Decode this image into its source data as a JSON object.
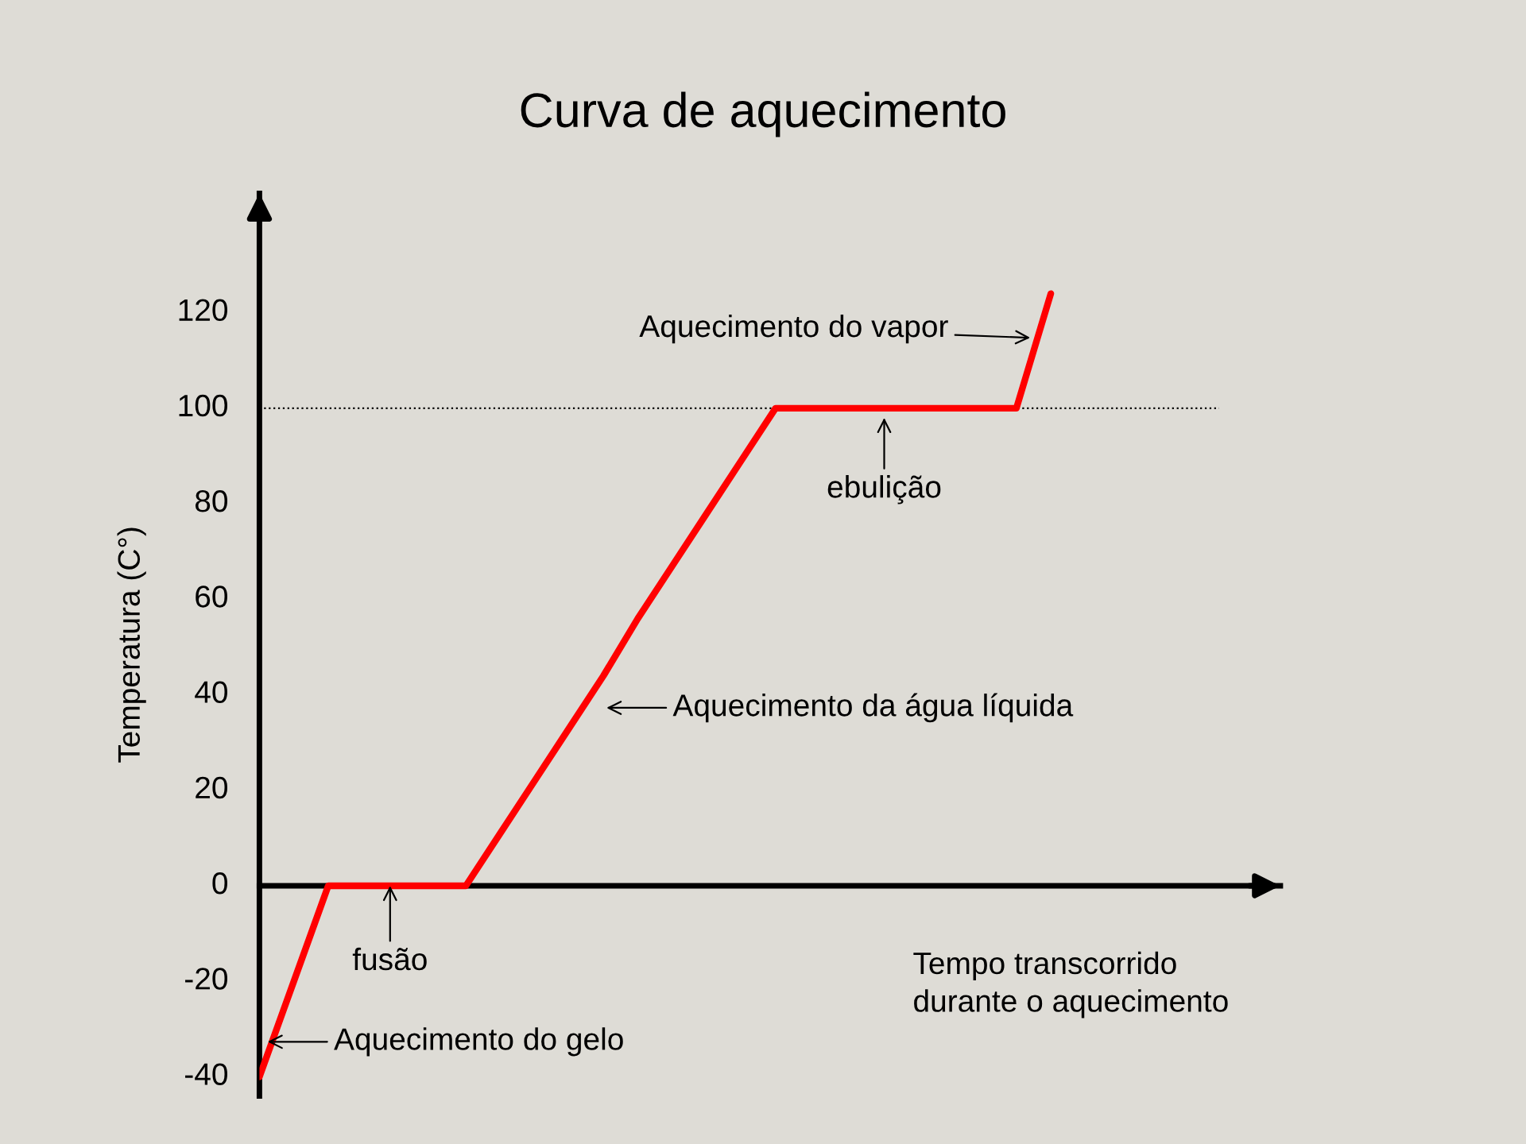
{
  "chart_data": {
    "type": "line",
    "title": "Curva de aquecimento",
    "ylabel": "Temperatura (C°)",
    "xlabel": "Tempo transcorrido\ndurante o aquecimento",
    "categories": [
      null,
      null,
      null,
      null,
      null,
      null,
      null,
      null,
      null,
      null,
      null,
      null,
      null,
      null,
      null,
      null,
      null,
      null,
      null,
      null,
      null,
      null,
      null,
      null
    ],
    "series": [
      {
        "color": "#ff0000",
        "values": [
          -40,
          -20,
          0,
          0,
          0,
          0,
          0,
          11,
          22,
          33,
          44,
          56,
          67,
          78,
          89,
          100,
          100,
          100,
          100,
          100,
          100,
          100,
          100,
          124
        ]
      }
    ],
    "ylim": [
      -44,
      145
    ],
    "yticks": [
      -40,
      -20,
      0,
      20,
      40,
      60,
      80,
      100,
      120
    ],
    "tick_labels": "y",
    "grid": false,
    "marker": "none",
    "line_style": "solid",
    "ref_lines": [
      {
        "axis": "y",
        "value": 100,
        "color": "#000000",
        "line_style": "dotted"
      }
    ],
    "annotations": [
      "Aquecimento do vapor",
      {
        "text": "ebulição",
        "y": 98
      },
      "Aquecimento da água líquida",
      {
        "text": "fusão",
        "y": 0
      },
      "Aquecimento do gelo"
    ]
  }
}
